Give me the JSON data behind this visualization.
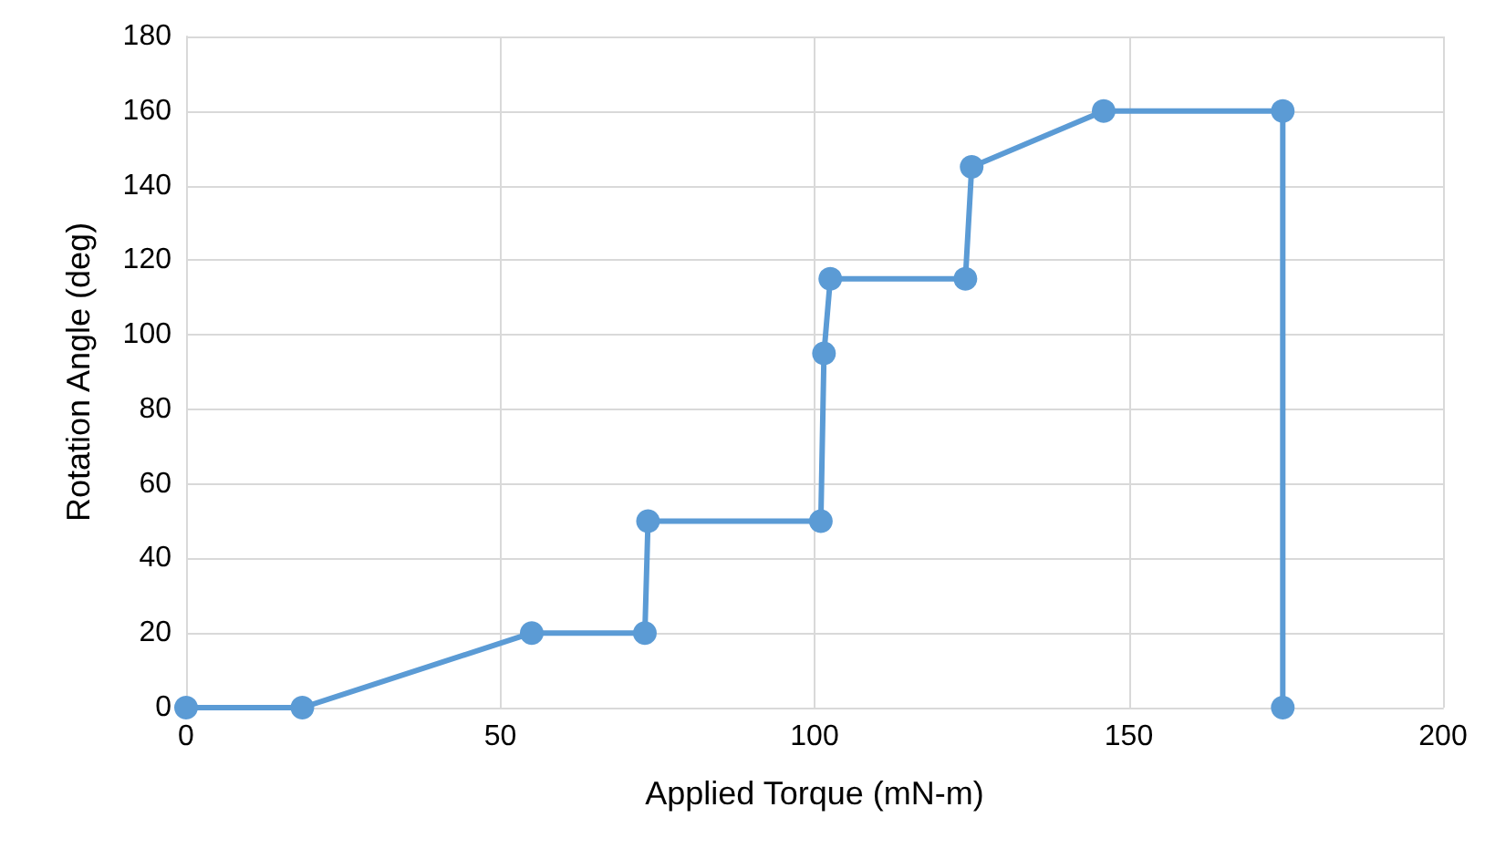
{
  "chart_data": {
    "type": "line",
    "xlabel": "Applied Torque (mN-m)",
    "ylabel": "Rotation Angle (deg)",
    "series": [
      {
        "color": "#5b9bd5",
        "x": [
          0,
          18.5,
          55,
          73,
          73.5,
          101,
          101.5,
          102.5,
          124,
          125,
          146,
          174.5,
          174.5
        ],
        "values": [
          0,
          0,
          20,
          20,
          50,
          50,
          95,
          115,
          115,
          145,
          160,
          160,
          0
        ]
      }
    ],
    "xlim": [
      0,
      200
    ],
    "xticks": [
      0,
      50,
      100,
      150,
      200
    ],
    "ylim": [
      0,
      180
    ],
    "yticks": [
      0,
      20,
      40,
      60,
      80,
      100,
      120,
      140,
      160,
      180
    ],
    "grid": true,
    "marker": "circle",
    "line_style": "solid"
  }
}
